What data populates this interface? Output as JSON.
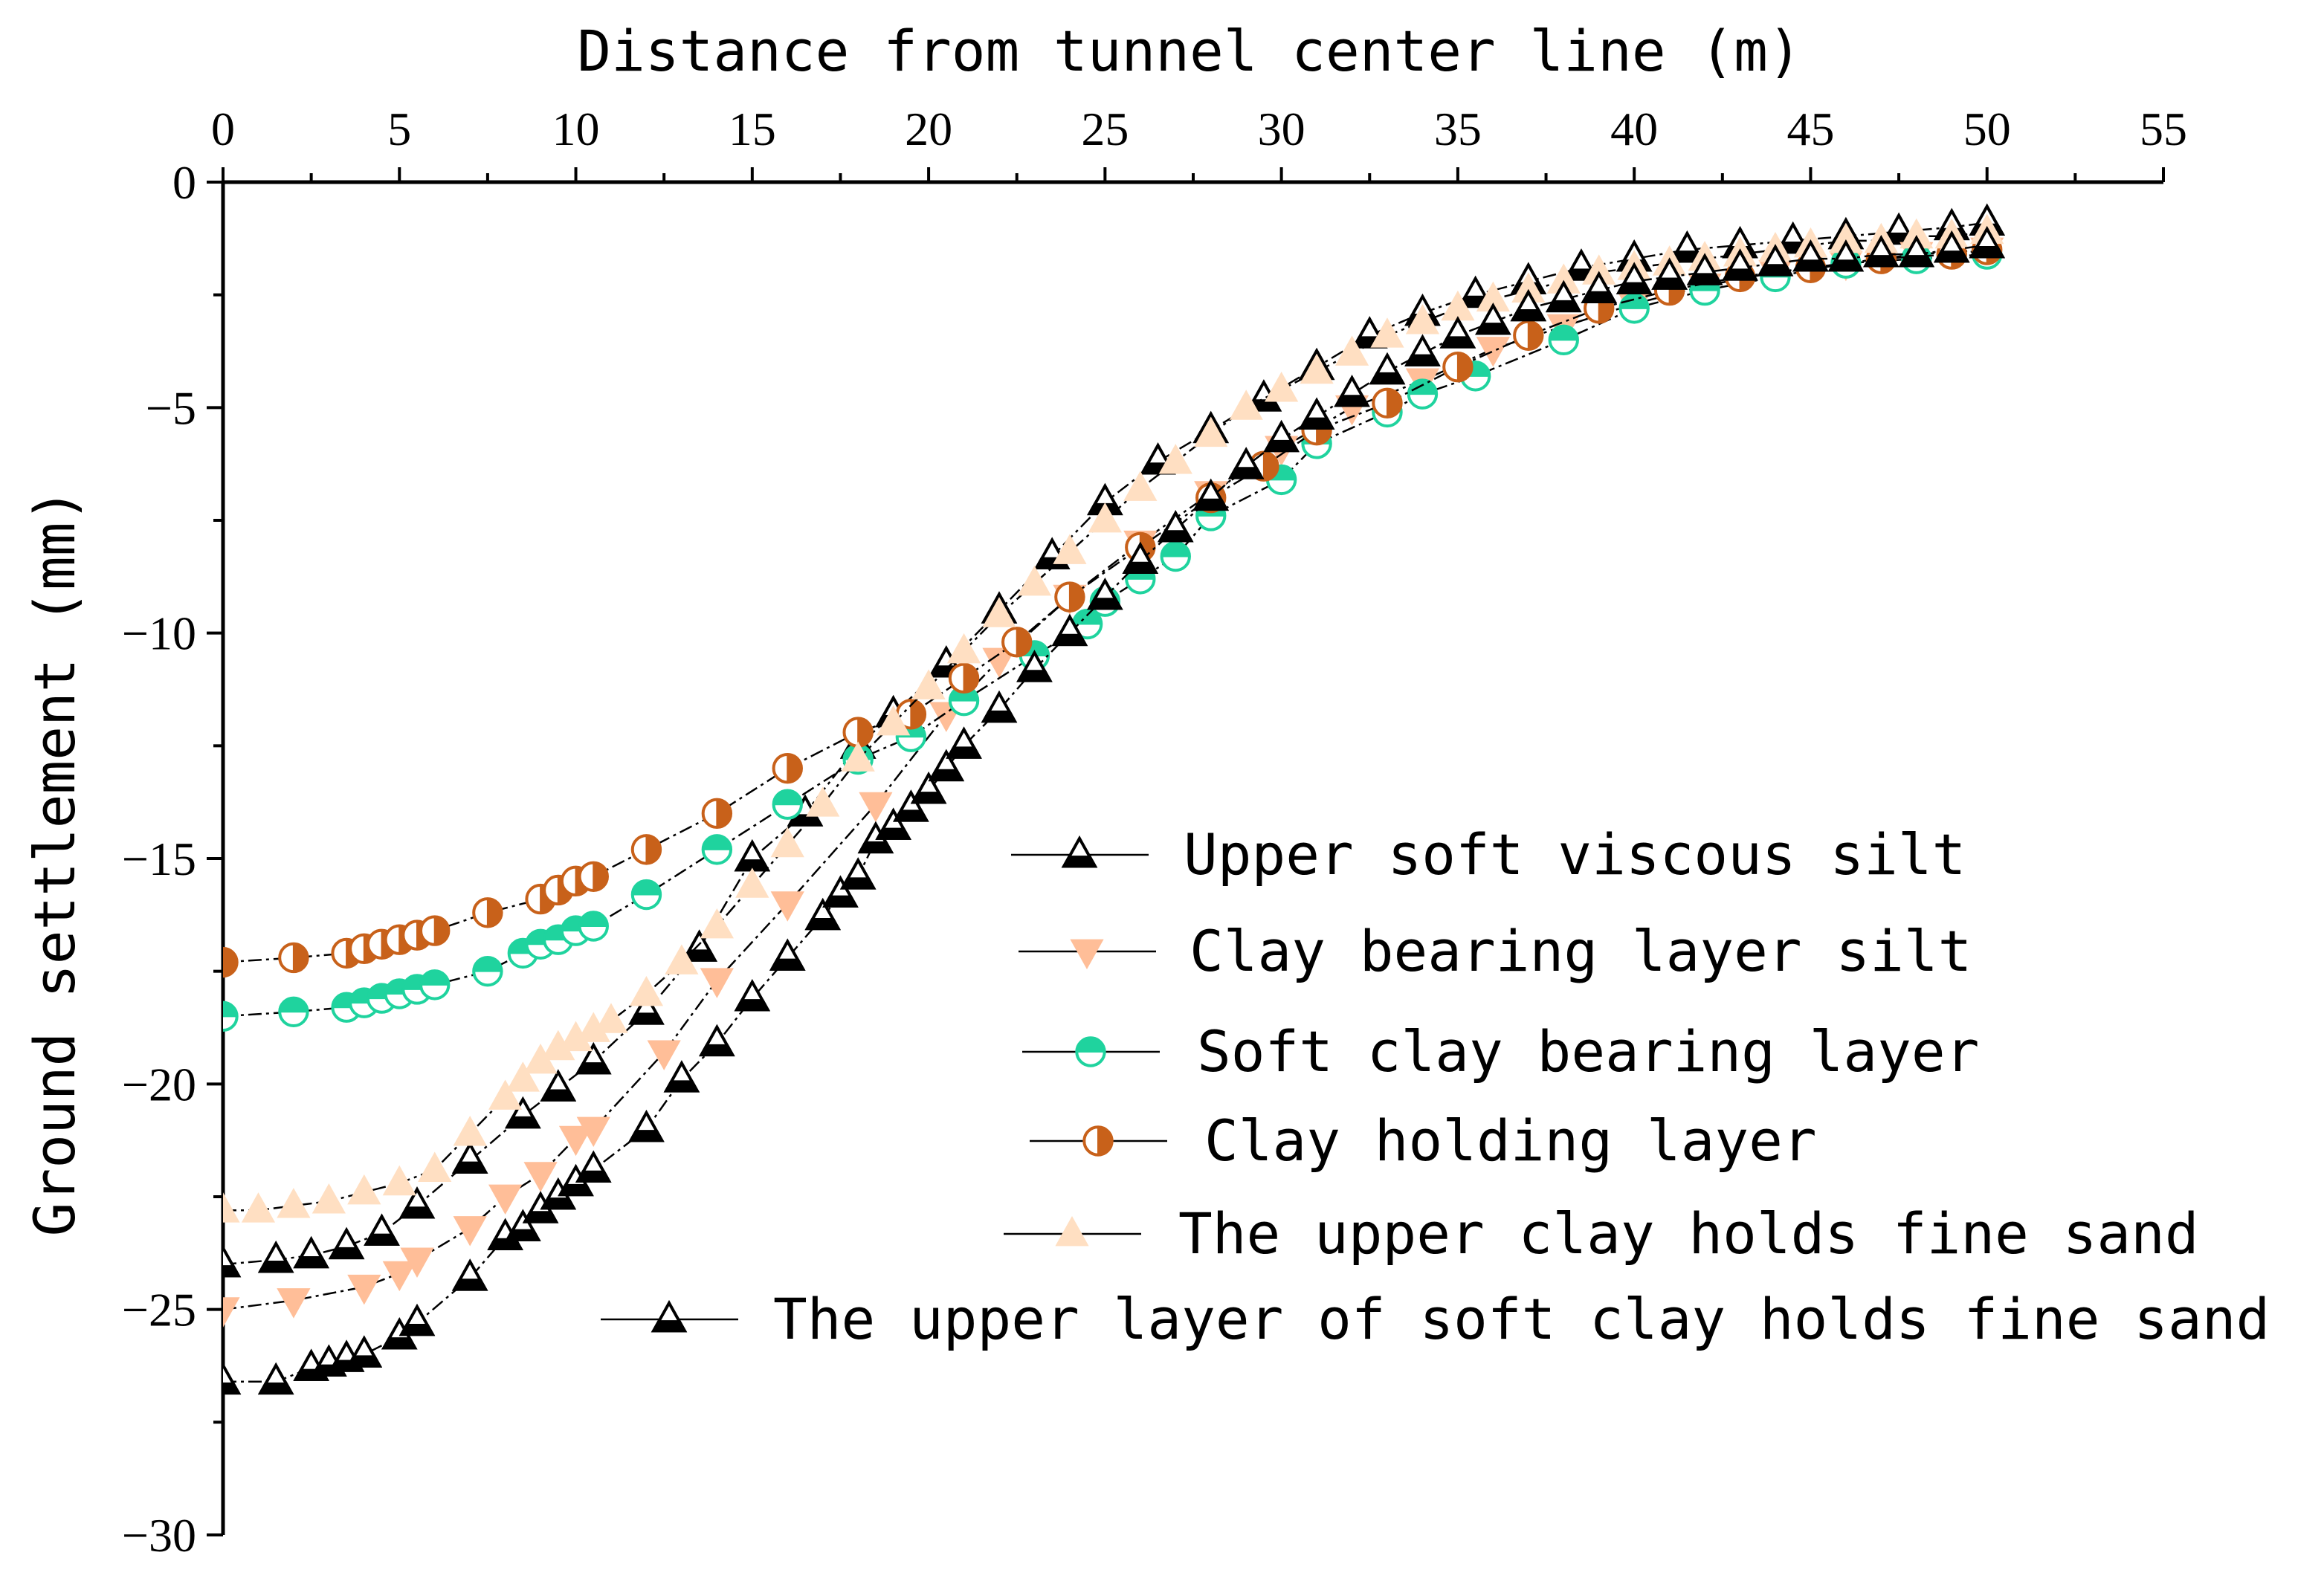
{
  "chart_data": {
    "type": "line",
    "title": "",
    "xlabel": "Distance from tunnel center line (m)",
    "ylabel": "Ground settlement (mm)",
    "xlim": [
      0,
      55
    ],
    "ylim": [
      -30,
      0
    ],
    "x_ticks": [
      0,
      5,
      10,
      15,
      20,
      25,
      30,
      35,
      40,
      45,
      50,
      55
    ],
    "y_ticks": [
      0,
      -5,
      -10,
      -15,
      -20,
      -25,
      -30
    ],
    "x_axis_position": "top",
    "grid": false,
    "legend_position": "center-right",
    "series": [
      {
        "name": "Upper soft viscous silt",
        "marker": "triangle-up-top-open-bottom-filled",
        "color": "#000000",
        "x": [
          0,
          1.5,
          2.5,
          3.5,
          4.5,
          5.5,
          7,
          8.5,
          9.5,
          10.5,
          12,
          13.5,
          15,
          16.5,
          18,
          19,
          20.5,
          22,
          23.5,
          25,
          26.5,
          28,
          29.5,
          31,
          32.5,
          34,
          35.5,
          37,
          38.5,
          40,
          41.5,
          43,
          44.5,
          46,
          47.5,
          49,
          50
        ],
        "y": [
          -24,
          -23.9,
          -23.8,
          -23.6,
          -23.3,
          -22.7,
          -21.7,
          -20.7,
          -20.1,
          -19.5,
          -18.4,
          -17,
          -15,
          -14,
          -12.5,
          -11.8,
          -10.7,
          -9.5,
          -8.3,
          -7.1,
          -6.2,
          -5.5,
          -4.8,
          -4.1,
          -3.4,
          -2.9,
          -2.5,
          -2.2,
          -1.9,
          -1.7,
          -1.5,
          -1.4,
          -1.3,
          -1.2,
          -1.1,
          -1,
          -0.9
        ]
      },
      {
        "name": "Clay bearing layer silt",
        "marker": "triangle-down-filled",
        "color": "#FFBE98",
        "x": [
          0,
          2,
          4,
          5,
          5.5,
          7,
          8,
          9,
          10,
          10.5,
          12.5,
          14,
          16,
          18.5,
          20.5,
          22,
          24,
          26,
          28,
          30,
          32,
          34,
          36,
          38,
          40,
          42,
          44,
          46,
          48,
          50
        ],
        "y": [
          -25,
          -24.8,
          -24.5,
          -24.2,
          -23.9,
          -23.2,
          -22.5,
          -22,
          -21.2,
          -21,
          -19.3,
          -17.7,
          -16,
          -13.8,
          -11.8,
          -10.6,
          -9.2,
          -8,
          -6.9,
          -5.9,
          -5,
          -4.4,
          -3.7,
          -3.2,
          -2.7,
          -2.3,
          -2,
          -1.8,
          -1.6,
          -1.5
        ]
      },
      {
        "name": "Soft clay bearing layer",
        "marker": "circle-half-filled-top-green",
        "color": "#1FD39E",
        "x": [
          0,
          2,
          3.5,
          4,
          4.5,
          5,
          5.5,
          6,
          7.5,
          8.5,
          9,
          9.5,
          10,
          10.5,
          12,
          14,
          16,
          18,
          19.5,
          21,
          23,
          24.5,
          25,
          26,
          27,
          28,
          30,
          31,
          33,
          34,
          35.5,
          38,
          40,
          42,
          44,
          46,
          48,
          50
        ],
        "y": [
          -18.5,
          -18.4,
          -18.3,
          -18.2,
          -18.1,
          -18,
          -17.9,
          -17.8,
          -17.5,
          -17.1,
          -16.9,
          -16.8,
          -16.6,
          -16.5,
          -15.8,
          -14.8,
          -13.8,
          -12.8,
          -12.3,
          -11.5,
          -10.5,
          -9.8,
          -9.3,
          -8.8,
          -8.3,
          -7.4,
          -6.6,
          -5.8,
          -5.1,
          -4.7,
          -4.3,
          -3.5,
          -2.8,
          -2.4,
          -2.1,
          -1.8,
          -1.7,
          -1.6
        ]
      },
      {
        "name": "Clay holding layer",
        "marker": "circle-half-filled-right-brown",
        "color": "#C8611A",
        "x": [
          0,
          2,
          3.5,
          4,
          4.5,
          5,
          5.5,
          6,
          7.5,
          9,
          9.5,
          10,
          10.5,
          12,
          14,
          16,
          18,
          19.5,
          21,
          22.5,
          24,
          26,
          28,
          29.5,
          31,
          33,
          35,
          37,
          39,
          41,
          43,
          45,
          47,
          49,
          50
        ],
        "y": [
          -17.3,
          -17.2,
          -17.1,
          -17,
          -16.9,
          -16.8,
          -16.7,
          -16.6,
          -16.2,
          -15.9,
          -15.7,
          -15.5,
          -15.4,
          -14.8,
          -14,
          -13,
          -12.2,
          -11.8,
          -11,
          -10.2,
          -9.2,
          -8.1,
          -7,
          -6.3,
          -5.5,
          -4.9,
          -4.1,
          -3.4,
          -2.8,
          -2.4,
          -2.1,
          -1.9,
          -1.7,
          -1.6,
          -1.5
        ]
      },
      {
        "name": "The upper clay holds fine sand",
        "marker": "triangle-up-filled",
        "color": "#FFDFC2",
        "x": [
          0,
          1,
          2,
          3,
          4,
          5,
          6,
          7,
          8,
          8.5,
          9,
          9.5,
          10,
          10.5,
          11,
          12,
          13,
          14,
          15,
          16,
          17,
          18,
          19,
          20,
          21,
          22,
          23,
          24,
          25,
          26,
          27,
          28,
          29,
          30,
          31,
          32,
          33,
          34,
          35,
          36,
          37,
          38,
          39,
          40,
          41,
          42,
          43,
          44,
          45,
          46,
          47,
          48,
          49,
          50
        ],
        "y": [
          -22.8,
          -22.8,
          -22.7,
          -22.6,
          -22.4,
          -22.2,
          -21.9,
          -21.1,
          -20.3,
          -19.9,
          -19.5,
          -19.2,
          -19,
          -18.8,
          -18.6,
          -18,
          -17.3,
          -16.5,
          -15.6,
          -14.7,
          -13.8,
          -12.8,
          -12,
          -11.2,
          -10.4,
          -9.6,
          -8.9,
          -8.2,
          -7.5,
          -6.8,
          -6.2,
          -5.6,
          -5,
          -4.6,
          -4.2,
          -3.8,
          -3.4,
          -3.1,
          -2.8,
          -2.6,
          -2.4,
          -2.2,
          -2,
          -1.9,
          -1.8,
          -1.7,
          -1.6,
          -1.5,
          -1.4,
          -1.3,
          -1.3,
          -1.2,
          -1.2,
          -1.1
        ]
      },
      {
        "name": "The upper layer of soft clay holds fine sand",
        "marker": "triangle-up-top-open-bottom-filled",
        "color": "#000000",
        "x": [
          0,
          1.5,
          2.5,
          3,
          3.5,
          4,
          5,
          5.5,
          7,
          8,
          8.5,
          9,
          9.5,
          10,
          10.5,
          12,
          13,
          14,
          15,
          16,
          17,
          17.5,
          18,
          18.5,
          19,
          19.5,
          20,
          20.5,
          21,
          22,
          23,
          24,
          25,
          26,
          27,
          28,
          29,
          30,
          31,
          32,
          33,
          34,
          35,
          36,
          37,
          38,
          39,
          40,
          41,
          42,
          43,
          44,
          45,
          46,
          47,
          48,
          49,
          50
        ],
        "y": [
          -26.6,
          -26.6,
          -26.3,
          -26.2,
          -26.1,
          -26,
          -25.6,
          -25.3,
          -24.3,
          -23.4,
          -23.2,
          -22.8,
          -22.5,
          -22.2,
          -21.9,
          -21,
          -19.9,
          -19.1,
          -18.1,
          -17.2,
          -16.3,
          -15.8,
          -15.4,
          -14.6,
          -14.3,
          -13.9,
          -13.5,
          -13,
          -12.5,
          -11.7,
          -10.8,
          -10,
          -9.2,
          -8.4,
          -7.7,
          -7,
          -6.3,
          -5.7,
          -5.2,
          -4.7,
          -4.2,
          -3.8,
          -3.4,
          -3.1,
          -2.8,
          -2.6,
          -2.4,
          -2.2,
          -2.1,
          -2,
          -1.9,
          -1.8,
          -1.7,
          -1.7,
          -1.6,
          -1.6,
          -1.5,
          -1.4
        ]
      }
    ]
  }
}
